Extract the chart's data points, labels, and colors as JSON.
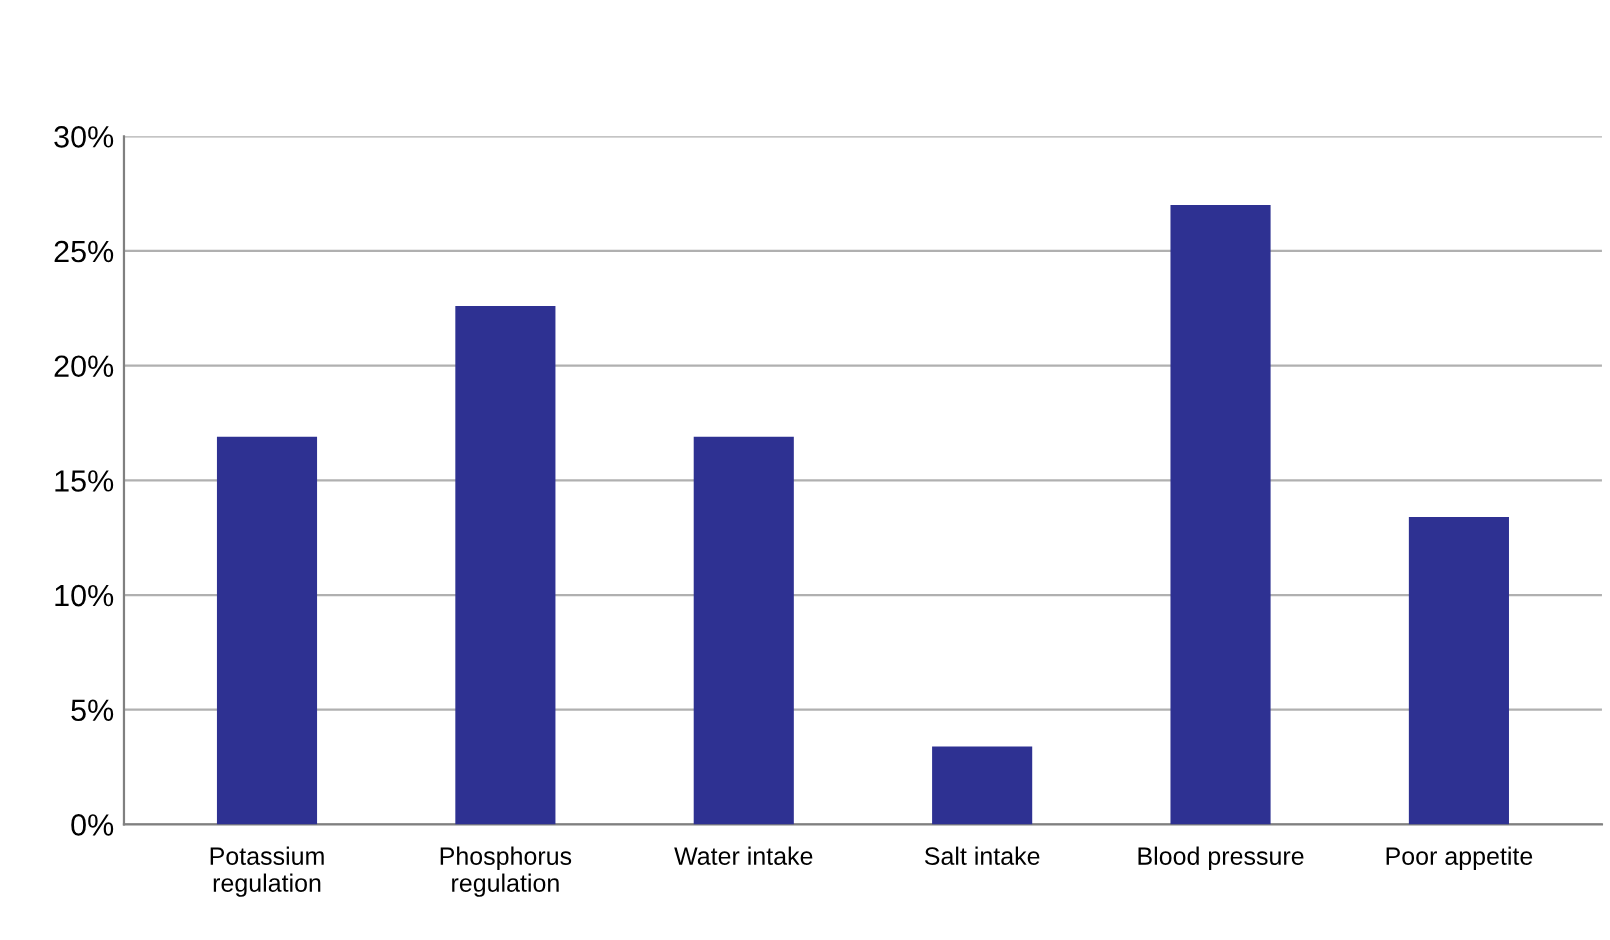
{
  "chart_data": {
    "type": "bar",
    "categories": [
      "Potassium\nregulation",
      "Phosphorus\nregulation",
      "Water intake",
      "Salt intake",
      "Blood pressure",
      "Poor appetite"
    ],
    "values": [
      16.9,
      22.6,
      16.9,
      3.4,
      27.0,
      13.4
    ],
    "color": "#2e3192",
    "ylim": [
      0,
      30
    ],
    "yticks": [
      {
        "value": 0,
        "label": "0%"
      },
      {
        "value": 5,
        "label": "5%"
      },
      {
        "value": 10,
        "label": "10%"
      },
      {
        "value": 15,
        "label": "15%"
      },
      {
        "value": 20,
        "label": "20%"
      },
      {
        "value": 25,
        "label": "25%"
      },
      {
        "value": 30,
        "label": "30%"
      }
    ],
    "grid": "y"
  }
}
